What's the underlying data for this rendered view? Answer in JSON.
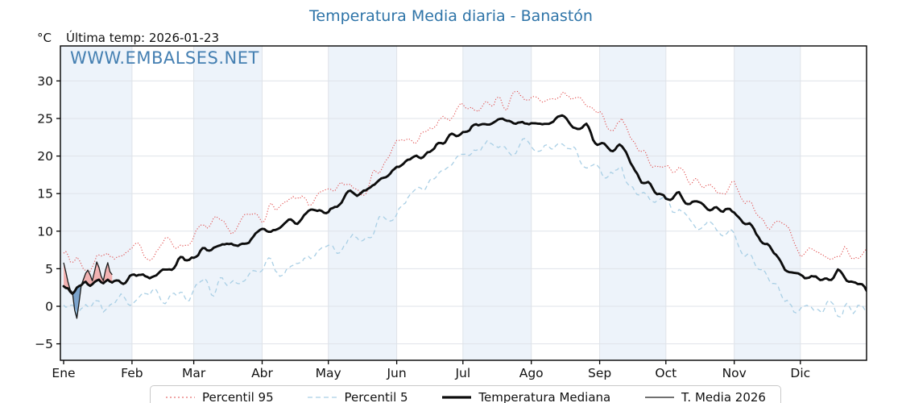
{
  "title": {
    "text": "Temperatura Media diaria - Banastón",
    "color": "#2e74a8"
  },
  "header": {
    "units": "°C",
    "last_temp": "Última temp: 2026-01-23"
  },
  "watermark": {
    "text": "WWW.EMBALSES.NET",
    "color": "#3b79ae"
  },
  "legend": {
    "items": [
      {
        "label": "Percentil 95",
        "style": "dotted",
        "color": "#e14b4b",
        "width": 1.1
      },
      {
        "label": "Percentil 5",
        "style": "dashed",
        "color": "#a9cfe5",
        "width": 1.3
      },
      {
        "label": "Temperatura Mediana",
        "style": "solid",
        "color": "#0d0d0d",
        "width": 3.2
      },
      {
        "label": "T. Media 2026",
        "style": "solid",
        "color": "#1a1a1a",
        "width": 1.3
      }
    ]
  },
  "chart_data": {
    "type": "line",
    "title": "Temperatura Media diaria - Banastón",
    "xlabel": "",
    "ylabel": "°C",
    "x_axis": {
      "unit": "day_of_year",
      "range": [
        1,
        365
      ],
      "month_tick_labels": [
        "Ene",
        "Feb",
        "Mar",
        "Abr",
        "May",
        "Jun",
        "Jul",
        "Ago",
        "Sep",
        "Oct",
        "Nov",
        "Dic"
      ],
      "month_start_days": [
        1,
        32,
        60,
        91,
        121,
        152,
        182,
        213,
        244,
        274,
        305,
        335
      ]
    },
    "y_axis": {
      "ticks": [
        -5,
        0,
        5,
        10,
        15,
        20,
        25,
        30
      ],
      "range": [
        -7.2,
        34.7
      ],
      "grid": true
    },
    "plot_style": {
      "band_color": "#edf3fa",
      "grid_color": "#dfe3e9",
      "spine_color": "#000000",
      "fill_above_color": "#f2b2b2",
      "fill_below_color": "#7ba3cc"
    },
    "series": [
      {
        "name": "Percentil 95",
        "color": "#e14b4b",
        "line": "dotted",
        "points": [
          [
            1,
            7.8
          ],
          [
            4,
            5.6
          ],
          [
            7,
            6.8
          ],
          [
            10,
            5.2
          ],
          [
            13,
            4.9
          ],
          [
            16,
            7.3
          ],
          [
            19,
            6.4
          ],
          [
            23,
            7.6
          ],
          [
            27,
            6.6
          ],
          [
            32,
            6.9
          ],
          [
            36,
            7.6
          ],
          [
            40,
            7.1
          ],
          [
            45,
            8.0
          ],
          [
            50,
            8.7
          ],
          [
            55,
            8.3
          ],
          [
            60,
            9.1
          ],
          [
            65,
            10.3
          ],
          [
            70,
            10.6
          ],
          [
            75,
            9.8
          ],
          [
            80,
            10.4
          ],
          [
            85,
            11.6
          ],
          [
            91,
            12.3
          ],
          [
            95,
            13.2
          ],
          [
            100,
            12.8
          ],
          [
            105,
            13.6
          ],
          [
            110,
            14.3
          ],
          [
            115,
            13.8
          ],
          [
            121,
            14.6
          ],
          [
            126,
            15.8
          ],
          [
            131,
            16.6
          ],
          [
            136,
            15.9
          ],
          [
            141,
            17.6
          ],
          [
            146,
            18.9
          ],
          [
            152,
            21.2
          ],
          [
            157,
            22.4
          ],
          [
            162,
            21.8
          ],
          [
            167,
            23.6
          ],
          [
            172,
            24.4
          ],
          [
            177,
            25.2
          ],
          [
            182,
            26.0
          ],
          [
            187,
            25.6
          ],
          [
            192,
            26.8
          ],
          [
            197,
            27.4
          ],
          [
            202,
            26.6
          ],
          [
            207,
            27.6
          ],
          [
            213,
            27.3
          ],
          [
            218,
            26.9
          ],
          [
            222,
            27.8
          ],
          [
            226,
            27.2
          ],
          [
            230,
            28.8
          ],
          [
            234,
            27.0
          ],
          [
            238,
            26.4
          ],
          [
            242,
            25.2
          ],
          [
            246,
            24.5
          ],
          [
            250,
            24.0
          ],
          [
            254,
            25.0
          ],
          [
            258,
            22.5
          ],
          [
            263,
            21.0
          ],
          [
            267,
            19.3
          ],
          [
            274,
            18.5
          ],
          [
            280,
            18.0
          ],
          [
            285,
            17.0
          ],
          [
            290,
            16.5
          ],
          [
            296,
            16.0
          ],
          [
            300,
            15.5
          ],
          [
            305,
            15.9
          ],
          [
            310,
            14.2
          ],
          [
            315,
            12.8
          ],
          [
            320,
            11.2
          ],
          [
            324,
            10.2
          ],
          [
            330,
            9.7
          ],
          [
            335,
            7.0
          ],
          [
            340,
            7.5
          ],
          [
            345,
            6.8
          ],
          [
            350,
            6.2
          ],
          [
            355,
            7.4
          ],
          [
            358,
            6.0
          ],
          [
            362,
            6.5
          ],
          [
            365,
            8.4
          ]
        ]
      },
      {
        "name": "Percentil 5",
        "color": "#a9cfe5",
        "line": "dashed",
        "points": [
          [
            1,
            0.6
          ],
          [
            3,
            0.2
          ],
          [
            5,
            -0.6
          ],
          [
            7,
            -1.3
          ],
          [
            9,
            -0.2
          ],
          [
            11,
            0.6
          ],
          [
            13,
            0.3
          ],
          [
            15,
            0.9
          ],
          [
            17,
            0.6
          ],
          [
            19,
            -0.3
          ],
          [
            21,
            0.4
          ],
          [
            23,
            0.8
          ],
          [
            26,
            0.3
          ],
          [
            29,
            0.9
          ],
          [
            32,
            0.8
          ],
          [
            36,
            1.2
          ],
          [
            40,
            0.9
          ],
          [
            45,
            1.4
          ],
          [
            50,
            1.6
          ],
          [
            55,
            2.0
          ],
          [
            60,
            2.4
          ],
          [
            64,
            2.9
          ],
          [
            68,
            2.6
          ],
          [
            72,
            3.1
          ],
          [
            76,
            3.4
          ],
          [
            80,
            3.6
          ],
          [
            84,
            4.2
          ],
          [
            88,
            4.6
          ],
          [
            91,
            4.9
          ],
          [
            95,
            5.7
          ],
          [
            100,
            4.6
          ],
          [
            105,
            5.4
          ],
          [
            110,
            6.1
          ],
          [
            115,
            6.6
          ],
          [
            121,
            7.3
          ],
          [
            126,
            8.2
          ],
          [
            131,
            8.9
          ],
          [
            136,
            9.4
          ],
          [
            141,
            10.2
          ],
          [
            146,
            11.0
          ],
          [
            152,
            12.8
          ],
          [
            157,
            14.2
          ],
          [
            162,
            15.0
          ],
          [
            167,
            16.2
          ],
          [
            172,
            17.4
          ],
          [
            177,
            18.6
          ],
          [
            182,
            19.4
          ],
          [
            187,
            20.3
          ],
          [
            192,
            21.2
          ],
          [
            196,
            21.6
          ],
          [
            200,
            20.4
          ],
          [
            204,
            20.1
          ],
          [
            209,
            21.2
          ],
          [
            213,
            21.7
          ],
          [
            218,
            21.0
          ],
          [
            222,
            21.4
          ],
          [
            226,
            20.8
          ],
          [
            230,
            21.6
          ],
          [
            234,
            20.6
          ],
          [
            238,
            20.0
          ],
          [
            241,
            19.6
          ],
          [
            244,
            19.3
          ],
          [
            250,
            17.2
          ],
          [
            254,
            18.3
          ],
          [
            258,
            15.8
          ],
          [
            263,
            14.8
          ],
          [
            267,
            14.2
          ],
          [
            274,
            13.2
          ],
          [
            280,
            12.4
          ],
          [
            285,
            11.5
          ],
          [
            290,
            11.8
          ],
          [
            296,
            10.5
          ],
          [
            300,
            10.0
          ],
          [
            305,
            9.6
          ],
          [
            310,
            7.8
          ],
          [
            315,
            6.0
          ],
          [
            320,
            4.0
          ],
          [
            325,
            2.2
          ],
          [
            330,
            0.6
          ],
          [
            335,
            -0.4
          ],
          [
            340,
            0.5
          ],
          [
            345,
            -0.2
          ],
          [
            350,
            1.2
          ],
          [
            354,
            -1.8
          ],
          [
            358,
            0.2
          ],
          [
            362,
            -0.6
          ],
          [
            365,
            0.0
          ]
        ]
      },
      {
        "name": "Temperatura Mediana",
        "color": "#0d0d0d",
        "line": "solid-thick",
        "points": [
          [
            1,
            3.0
          ],
          [
            3,
            3.3
          ],
          [
            5,
            2.6
          ],
          [
            7,
            2.8
          ],
          [
            9,
            2.4
          ],
          [
            11,
            3.1
          ],
          [
            13,
            3.0
          ],
          [
            15,
            3.3
          ],
          [
            17,
            3.6
          ],
          [
            19,
            3.1
          ],
          [
            21,
            3.6
          ],
          [
            23,
            3.4
          ],
          [
            26,
            3.9
          ],
          [
            29,
            3.7
          ],
          [
            32,
            4.1
          ],
          [
            36,
            4.5
          ],
          [
            40,
            4.3
          ],
          [
            45,
            5.0
          ],
          [
            50,
            5.3
          ],
          [
            55,
            6.2
          ],
          [
            60,
            6.9
          ],
          [
            64,
            7.3
          ],
          [
            68,
            7.2
          ],
          [
            72,
            7.6
          ],
          [
            76,
            8.0
          ],
          [
            80,
            8.3
          ],
          [
            84,
            8.8
          ],
          [
            88,
            9.4
          ],
          [
            91,
            9.9
          ],
          [
            95,
            10.4
          ],
          [
            100,
            10.7
          ],
          [
            105,
            11.3
          ],
          [
            110,
            11.9
          ],
          [
            115,
            12.4
          ],
          [
            121,
            13.1
          ],
          [
            126,
            14.0
          ],
          [
            131,
            14.6
          ],
          [
            136,
            15.2
          ],
          [
            141,
            15.9
          ],
          [
            146,
            16.8
          ],
          [
            152,
            18.4
          ],
          [
            157,
            19.2
          ],
          [
            162,
            19.8
          ],
          [
            167,
            20.7
          ],
          [
            172,
            21.6
          ],
          [
            177,
            22.4
          ],
          [
            182,
            23.3
          ],
          [
            187,
            23.9
          ],
          [
            192,
            24.4
          ],
          [
            197,
            24.7
          ],
          [
            202,
            24.3
          ],
          [
            207,
            24.6
          ],
          [
            213,
            24.8
          ],
          [
            218,
            24.5
          ],
          [
            222,
            24.9
          ],
          [
            226,
            24.4
          ],
          [
            230,
            24.7
          ],
          [
            234,
            24.2
          ],
          [
            238,
            23.6
          ],
          [
            241,
            22.3
          ],
          [
            244,
            21.3
          ],
          [
            250,
            20.7
          ],
          [
            253,
            21.5
          ],
          [
            256,
            20.3
          ],
          [
            260,
            18.0
          ],
          [
            263,
            16.8
          ],
          [
            267,
            16.2
          ],
          [
            271,
            15.0
          ],
          [
            274,
            14.3
          ],
          [
            280,
            14.8
          ],
          [
            285,
            13.8
          ],
          [
            290,
            13.5
          ],
          [
            296,
            13.4
          ],
          [
            300,
            13.0
          ],
          [
            305,
            12.5
          ],
          [
            312,
            10.5
          ],
          [
            318,
            8.3
          ],
          [
            324,
            7.0
          ],
          [
            328,
            5.2
          ],
          [
            332,
            4.6
          ],
          [
            336,
            4.3
          ],
          [
            340,
            3.8
          ],
          [
            344,
            3.3
          ],
          [
            348,
            4.0
          ],
          [
            352,
            4.8
          ],
          [
            356,
            3.4
          ],
          [
            360,
            3.1
          ],
          [
            365,
            2.6
          ]
        ]
      },
      {
        "name": "T. Media 2026",
        "color": "#1a1a1a",
        "line": "solid-thin",
        "days": [
          1,
          2,
          3,
          4,
          5,
          6,
          7,
          8,
          9,
          10,
          11,
          12,
          13,
          14,
          15,
          16,
          17,
          18,
          19,
          20,
          21,
          22,
          23
        ],
        "values": [
          5.8,
          4.6,
          3.2,
          2.2,
          1.8,
          -0.5,
          -1.6,
          0.5,
          2.8,
          3.6,
          4.4,
          4.8,
          4.2,
          3.4,
          4.6,
          5.9,
          5.2,
          4.0,
          3.4,
          4.8,
          5.8,
          4.6,
          4.2
        ]
      }
    ]
  }
}
